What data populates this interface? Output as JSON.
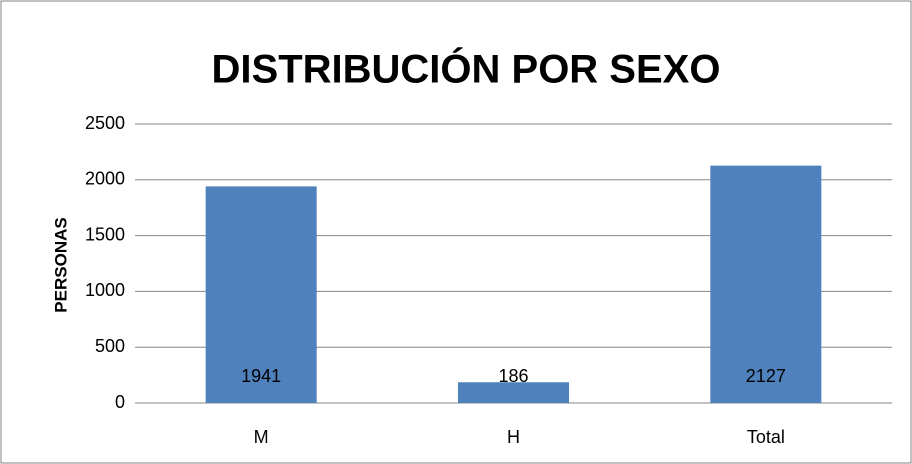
{
  "chart_data": {
    "type": "bar",
    "title": "DISTRIBUCIÓN POR SEXO",
    "y_label": "PERSONAS",
    "categories": [
      "M",
      "H",
      "Total"
    ],
    "values": [
      1941,
      186,
      2127
    ],
    "color": "#4f81bd",
    "ylim": [
      0,
      2500
    ],
    "yticks": [
      0,
      500,
      1000,
      1500,
      2000,
      2500
    ],
    "grid": true
  }
}
